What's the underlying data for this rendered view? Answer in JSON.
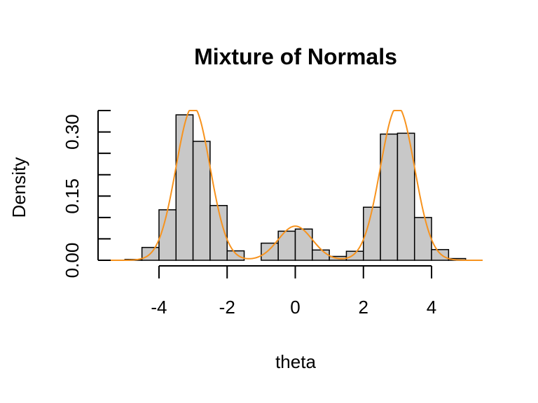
{
  "chart_data": {
    "type": "bar",
    "title": "Mixture of Normals",
    "xlabel": "theta",
    "ylabel": "Density",
    "xlim": [
      -5.5,
      5.5
    ],
    "ylim": [
      0,
      0.35
    ],
    "x_ticks": [
      -4,
      -2,
      0,
      2,
      4
    ],
    "x_tick_labels": [
      "-4",
      "-2",
      "0",
      "2",
      "4"
    ],
    "y_ticks": [
      0.0,
      0.05,
      0.1,
      0.15,
      0.2,
      0.25,
      0.3,
      0.35
    ],
    "y_tick_labels": [
      "0.00",
      "",
      "",
      "0.15",
      "",
      "",
      "0.30",
      ""
    ],
    "histogram": {
      "bin_width": 0.5,
      "bins": [
        {
          "x0": -5.0,
          "density": 0.002
        },
        {
          "x0": -4.5,
          "density": 0.03
        },
        {
          "x0": -4.0,
          "density": 0.118
        },
        {
          "x0": -3.5,
          "density": 0.34
        },
        {
          "x0": -3.0,
          "density": 0.278
        },
        {
          "x0": -2.5,
          "density": 0.128
        },
        {
          "x0": -2.0,
          "density": 0.022
        },
        {
          "x0": -1.5,
          "density": 0.0
        },
        {
          "x0": -1.0,
          "density": 0.04
        },
        {
          "x0": -0.5,
          "density": 0.068
        },
        {
          "x0": 0.0,
          "density": 0.073
        },
        {
          "x0": 0.5,
          "density": 0.024
        },
        {
          "x0": 1.0,
          "density": 0.009
        },
        {
          "x0": 1.5,
          "density": 0.021
        },
        {
          "x0": 2.0,
          "density": 0.124
        },
        {
          "x0": 2.5,
          "density": 0.295
        },
        {
          "x0": 3.0,
          "density": 0.297
        },
        {
          "x0": 3.5,
          "density": 0.1
        },
        {
          "x0": 4.0,
          "density": 0.025
        },
        {
          "x0": 4.5,
          "density": 0.004
        }
      ]
    },
    "density_curve": {
      "color": "#f7931e",
      "components": [
        {
          "weight": 0.45,
          "mean": -3.0,
          "sd": 0.5
        },
        {
          "weight": 0.1,
          "mean": 0.0,
          "sd": 0.5
        },
        {
          "weight": 0.45,
          "mean": 3.0,
          "sd": 0.5
        }
      ]
    },
    "bar_fill": "#c8c8c8",
    "grid": false
  }
}
